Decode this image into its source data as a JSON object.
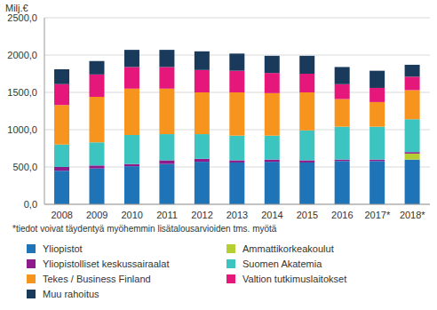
{
  "chart_data": {
    "type": "bar",
    "stacked": true,
    "grid": true,
    "legend": "bottom",
    "y_label": "Milj.€",
    "annotations": [
      "*tiedot voivat täydentyä myöhemmin lisätalousarvioiden tms. myötä"
    ],
    "categories": [
      "2008",
      "2009",
      "2010",
      "2011",
      "2012",
      "2013",
      "2014",
      "2015",
      "2016",
      "2017*",
      "2018*"
    ],
    "ylim": [
      0,
      2500
    ],
    "yticks": [
      {
        "value": 0,
        "label": "0,0"
      },
      {
        "value": 500,
        "label": "500,0"
      },
      {
        "value": 1000,
        "label": "1000,0"
      },
      {
        "value": 1500,
        "label": "1500,0"
      },
      {
        "value": 2000,
        "label": "2000,0"
      },
      {
        "value": 2500,
        "label": "2500,0"
      }
    ],
    "series": [
      {
        "name": "Yliopistot",
        "color": "#1f74b8",
        "values": [
          450,
          480,
          510,
          540,
          570,
          560,
          570,
          560,
          580,
          580,
          600
        ]
      },
      {
        "name": "Ammattikorkeakoulut",
        "color": "#b5cf32",
        "values": [
          0,
          0,
          0,
          0,
          0,
          0,
          0,
          0,
          0,
          0,
          80
        ]
      },
      {
        "name": "Yliopistolliset keskussairaalat",
        "color": "#8e1b8b",
        "values": [
          50,
          40,
          30,
          50,
          40,
          30,
          30,
          30,
          20,
          20,
          20
        ]
      },
      {
        "name": "Suomen Akatemia",
        "color": "#3cc4c1",
        "values": [
          300,
          310,
          390,
          350,
          330,
          330,
          320,
          400,
          440,
          440,
          440
        ]
      },
      {
        "name": "Tekes / Business Finland",
        "color": "#f7941d",
        "values": [
          530,
          610,
          620,
          610,
          560,
          580,
          570,
          510,
          370,
          330,
          390
        ]
      },
      {
        "name": "Valtion tutkimuslaitokset",
        "color": "#e6177b",
        "values": [
          280,
          300,
          290,
          290,
          300,
          290,
          270,
          250,
          200,
          190,
          180
        ]
      },
      {
        "name": "Muu rahoitus",
        "color": "#1a3a5c",
        "values": [
          200,
          180,
          230,
          230,
          250,
          230,
          230,
          240,
          230,
          230,
          160
        ]
      }
    ]
  }
}
